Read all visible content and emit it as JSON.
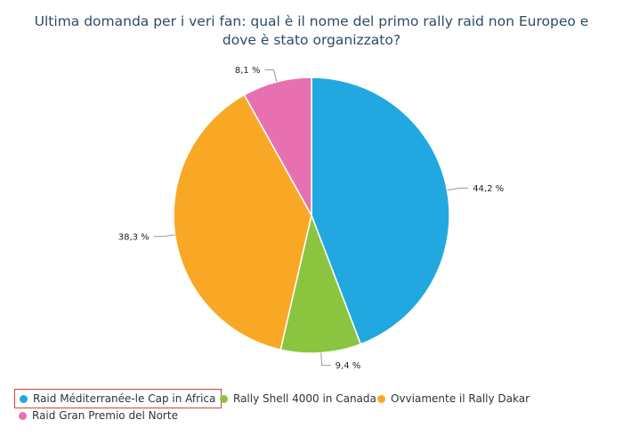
{
  "chart_data": {
    "type": "pie",
    "title": "Ultima domanda per i veri fan: qual è il nome del primo rally raid non Europeo e dove è stato organizzato?",
    "slices": [
      {
        "name": "Raid Méditerranée-le Cap in Africa",
        "value": 44.2,
        "label": "44,2 %",
        "color": "#21a8e0"
      },
      {
        "name": "Rally Shell 4000 in Canada",
        "value": 9.4,
        "label": "9,4 %",
        "color": "#8bc53f"
      },
      {
        "name": "Ovviamente il Rally Dakar",
        "value": 38.3,
        "label": "38,3 %",
        "color": "#f9a826"
      },
      {
        "name": "Raid Gran Premio del Norte",
        "value": 8.1,
        "label": "8,1 %",
        "color": "#e870b0"
      }
    ],
    "legend": {
      "position": "bottom-left",
      "selected_index": 0
    }
  }
}
